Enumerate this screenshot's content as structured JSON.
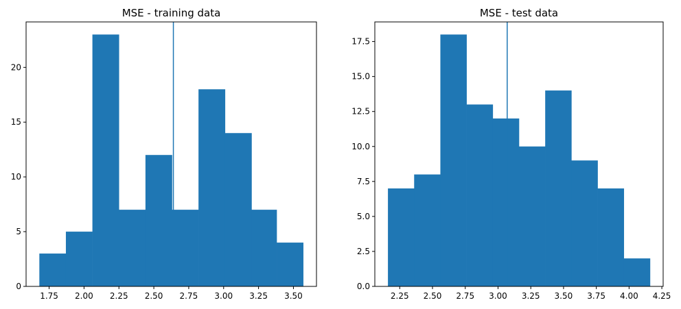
{
  "chart_data": [
    {
      "type": "bar",
      "title": "MSE - training data",
      "xlabel": "",
      "ylabel": "",
      "bar_color": "#1f77b4",
      "bin_edges": [
        1.68,
        1.87,
        2.06,
        2.25,
        2.44,
        2.63,
        2.82,
        3.01,
        3.2,
        3.38,
        3.57
      ],
      "values": [
        3,
        5,
        23,
        7,
        12,
        7,
        18,
        14,
        7,
        4
      ],
      "vline": 2.64,
      "xlim": [
        1.585,
        3.665
      ],
      "ylim": [
        0,
        24.15
      ],
      "xticks": [
        1.75,
        2.0,
        2.25,
        2.5,
        2.75,
        3.0,
        3.25,
        3.5
      ],
      "xtick_labels": [
        "1.75",
        "2.00",
        "2.25",
        "2.50",
        "2.75",
        "3.00",
        "3.25",
        "3.50"
      ],
      "yticks": [
        0,
        5,
        10,
        15,
        20
      ],
      "ytick_labels": [
        "0",
        "5",
        "10",
        "15",
        "20"
      ],
      "grid": false
    },
    {
      "type": "bar",
      "title": "MSE - test data",
      "xlabel": "",
      "ylabel": "",
      "bar_color": "#1f77b4",
      "bin_edges": [
        2.16,
        2.36,
        2.56,
        2.76,
        2.96,
        3.16,
        3.36,
        3.56,
        3.76,
        3.96,
        4.16
      ],
      "values": [
        7,
        8,
        18,
        13,
        12,
        10,
        14,
        9,
        7,
        2
      ],
      "vline": 3.07,
      "xlim": [
        2.06,
        4.26
      ],
      "ylim": [
        0,
        18.9
      ],
      "xticks": [
        2.25,
        2.5,
        2.75,
        3.0,
        3.25,
        3.5,
        3.75,
        4.0,
        4.25
      ],
      "xtick_labels": [
        "2.25",
        "2.50",
        "2.75",
        "3.00",
        "3.25",
        "3.50",
        "3.75",
        "4.00",
        "4.25"
      ],
      "yticks": [
        0,
        2.5,
        5.0,
        7.5,
        10.0,
        12.5,
        15.0,
        17.5
      ],
      "ytick_labels": [
        "0.0",
        "2.5",
        "5.0",
        "7.5",
        "10.0",
        "12.5",
        "15.0",
        "17.5"
      ],
      "grid": false
    }
  ]
}
